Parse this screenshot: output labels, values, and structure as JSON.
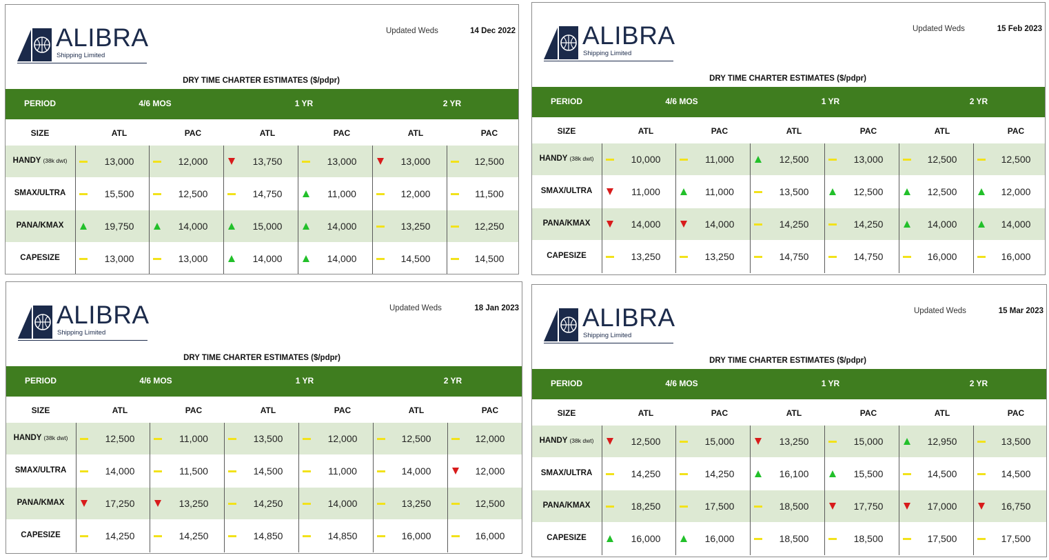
{
  "panels": [
    {
      "brand": "ALIBRA",
      "tagline": "Shipping Limited",
      "updated_label": "Updated Weds",
      "date": "14 Dec 2022",
      "caption": "DRY TIME CHARTER ESTIMATES ($/pdpr)",
      "period_header": [
        "PERIOD",
        "4/6 MOS",
        "1 YR",
        "2 YR"
      ],
      "size_header": [
        "SIZE",
        "ATL",
        "PAC",
        "ATL",
        "PAC",
        "ATL",
        "PAC"
      ],
      "rows": [
        {
          "label": "HANDY",
          "sub": "(38k dwt)",
          "cells": [
            {
              "t": "flat",
              "v": "13,000"
            },
            {
              "t": "flat",
              "v": "12,000"
            },
            {
              "t": "down",
              "v": "13,750"
            },
            {
              "t": "flat",
              "v": "13,000"
            },
            {
              "t": "down",
              "v": "13,000"
            },
            {
              "t": "flat",
              "v": "12,500"
            }
          ]
        },
        {
          "label": "SMAX/ULTRA",
          "sub": "",
          "cells": [
            {
              "t": "flat",
              "v": "15,500"
            },
            {
              "t": "flat",
              "v": "12,500"
            },
            {
              "t": "flat",
              "v": "14,750"
            },
            {
              "t": "up",
              "v": "11,000"
            },
            {
              "t": "flat",
              "v": "12,000"
            },
            {
              "t": "flat",
              "v": "11,500"
            }
          ]
        },
        {
          "label": "PANA/KMAX",
          "sub": "",
          "cells": [
            {
              "t": "up",
              "v": "19,750"
            },
            {
              "t": "up",
              "v": "14,000"
            },
            {
              "t": "up",
              "v": "15,000"
            },
            {
              "t": "up",
              "v": "14,000"
            },
            {
              "t": "flat",
              "v": "13,250"
            },
            {
              "t": "flat",
              "v": "12,250"
            }
          ]
        },
        {
          "label": "CAPESIZE",
          "sub": "",
          "cells": [
            {
              "t": "flat",
              "v": "13,000"
            },
            {
              "t": "flat",
              "v": "13,000"
            },
            {
              "t": "up",
              "v": "14,000"
            },
            {
              "t": "up",
              "v": "14,000"
            },
            {
              "t": "flat",
              "v": "14,500"
            },
            {
              "t": "flat",
              "v": "14,500"
            }
          ]
        }
      ]
    },
    {
      "brand": "ALIBRA",
      "tagline": "Shipping Limited",
      "updated_label": "Updated Weds",
      "date": "15 Feb 2023",
      "caption": "DRY TIME CHARTER ESTIMATES ($/pdpr)",
      "period_header": [
        "PERIOD",
        "4/6 MOS",
        "1 YR",
        "2 YR"
      ],
      "size_header": [
        "SIZE",
        "ATL",
        "PAC",
        "ATL",
        "PAC",
        "ATL",
        "PAC"
      ],
      "rows": [
        {
          "label": "HANDY",
          "sub": "(38k dwt)",
          "cells": [
            {
              "t": "flat",
              "v": "10,000"
            },
            {
              "t": "flat",
              "v": "11,000"
            },
            {
              "t": "up",
              "v": "12,500"
            },
            {
              "t": "flat",
              "v": "13,000"
            },
            {
              "t": "flat",
              "v": "12,500"
            },
            {
              "t": "flat",
              "v": "12,500"
            }
          ]
        },
        {
          "label": "SMAX/ULTRA",
          "sub": "",
          "cells": [
            {
              "t": "down",
              "v": "11,000"
            },
            {
              "t": "up",
              "v": "11,000"
            },
            {
              "t": "flat",
              "v": "13,500"
            },
            {
              "t": "up",
              "v": "12,500"
            },
            {
              "t": "up",
              "v": "12,500"
            },
            {
              "t": "up",
              "v": "12,000"
            }
          ]
        },
        {
          "label": "PANA/KMAX",
          "sub": "",
          "cells": [
            {
              "t": "down",
              "v": "14,000"
            },
            {
              "t": "down",
              "v": "14,000"
            },
            {
              "t": "flat",
              "v": "14,250"
            },
            {
              "t": "flat",
              "v": "14,250"
            },
            {
              "t": "up",
              "v": "14,000"
            },
            {
              "t": "up",
              "v": "14,000"
            }
          ]
        },
        {
          "label": "CAPESIZE",
          "sub": "",
          "cells": [
            {
              "t": "flat",
              "v": "13,250"
            },
            {
              "t": "flat",
              "v": "13,250"
            },
            {
              "t": "flat",
              "v": "14,750"
            },
            {
              "t": "flat",
              "v": "14,750"
            },
            {
              "t": "flat",
              "v": "16,000"
            },
            {
              "t": "flat",
              "v": "16,000"
            }
          ]
        }
      ]
    },
    {
      "brand": "ALIBRA",
      "tagline": "Shipping Limited",
      "updated_label": "Updated Weds",
      "date": "18 Jan 2023",
      "caption": "DRY TIME CHARTER ESTIMATES ($/pdpr)",
      "period_header": [
        "PERIOD",
        "4/6 MOS",
        "1 YR",
        "2 YR"
      ],
      "size_header": [
        "SIZE",
        "ATL",
        "PAC",
        "ATL",
        "PAC",
        "ATL",
        "PAC"
      ],
      "rows": [
        {
          "label": "HANDY",
          "sub": "(38k dwt)",
          "cells": [
            {
              "t": "flat",
              "v": "12,500"
            },
            {
              "t": "flat",
              "v": "11,000"
            },
            {
              "t": "flat",
              "v": "13,500"
            },
            {
              "t": "flat",
              "v": "12,000"
            },
            {
              "t": "flat",
              "v": "12,500"
            },
            {
              "t": "flat",
              "v": "12,000"
            }
          ]
        },
        {
          "label": "SMAX/ULTRA",
          "sub": "",
          "cells": [
            {
              "t": "flat",
              "v": "14,000"
            },
            {
              "t": "flat",
              "v": "11,500"
            },
            {
              "t": "flat",
              "v": "14,500"
            },
            {
              "t": "flat",
              "v": "11,000"
            },
            {
              "t": "flat",
              "v": "14,000"
            },
            {
              "t": "down",
              "v": "12,000"
            }
          ]
        },
        {
          "label": "PANA/KMAX",
          "sub": "",
          "cells": [
            {
              "t": "down",
              "v": "17,250"
            },
            {
              "t": "down",
              "v": "13,250"
            },
            {
              "t": "flat",
              "v": "14,250"
            },
            {
              "t": "flat",
              "v": "14,000"
            },
            {
              "t": "flat",
              "v": "13,250"
            },
            {
              "t": "flat",
              "v": "12,500"
            }
          ]
        },
        {
          "label": "CAPESIZE",
          "sub": "",
          "cells": [
            {
              "t": "flat",
              "v": "14,250"
            },
            {
              "t": "flat",
              "v": "14,250"
            },
            {
              "t": "flat",
              "v": "14,850"
            },
            {
              "t": "flat",
              "v": "14,850"
            },
            {
              "t": "flat",
              "v": "16,000"
            },
            {
              "t": "flat",
              "v": "16,000"
            }
          ]
        }
      ]
    },
    {
      "brand": "ALIBRA",
      "tagline": "Shipping Limited",
      "updated_label": "Updated Weds",
      "date": "15 Mar 2023",
      "caption": "DRY TIME CHARTER ESTIMATES ($/pdpr)",
      "period_header": [
        "PERIOD",
        "4/6 MOS",
        "1 YR",
        "2 YR"
      ],
      "size_header": [
        "SIZE",
        "ATL",
        "PAC",
        "ATL",
        "PAC",
        "ATL",
        "PAC"
      ],
      "rows": [
        {
          "label": "HANDY",
          "sub": "(38k dwt)",
          "cells": [
            {
              "t": "down",
              "v": "12,500"
            },
            {
              "t": "flat",
              "v": "15,000"
            },
            {
              "t": "down",
              "v": "13,250"
            },
            {
              "t": "flat",
              "v": "15,000"
            },
            {
              "t": "up",
              "v": "12,950"
            },
            {
              "t": "flat",
              "v": "13,500"
            }
          ]
        },
        {
          "label": "SMAX/ULTRA",
          "sub": "",
          "cells": [
            {
              "t": "flat",
              "v": "14,250"
            },
            {
              "t": "flat",
              "v": "14,250"
            },
            {
              "t": "up",
              "v": "16,100"
            },
            {
              "t": "up",
              "v": "15,500"
            },
            {
              "t": "flat",
              "v": "14,500"
            },
            {
              "t": "flat",
              "v": "14,500"
            }
          ]
        },
        {
          "label": "PANA/KMAX",
          "sub": "",
          "cells": [
            {
              "t": "flat",
              "v": "18,250"
            },
            {
              "t": "flat",
              "v": "17,500"
            },
            {
              "t": "flat",
              "v": "18,500"
            },
            {
              "t": "down",
              "v": "17,750"
            },
            {
              "t": "down",
              "v": "17,000"
            },
            {
              "t": "down",
              "v": "16,750"
            }
          ]
        },
        {
          "label": "CAPESIZE",
          "sub": "",
          "cells": [
            {
              "t": "up",
              "v": "16,000"
            },
            {
              "t": "up",
              "v": "16,000"
            },
            {
              "t": "flat",
              "v": "18,500"
            },
            {
              "t": "flat",
              "v": "18,500"
            },
            {
              "t": "flat",
              "v": "17,500"
            },
            {
              "t": "flat",
              "v": "17,500"
            }
          ]
        }
      ]
    }
  ],
  "colors": {
    "header_green": "#3f7d1f",
    "row_shade": "#dde9d3",
    "up": "#22c02a",
    "down": "#d81b1b",
    "flat": "#f2e21a",
    "brand": "#1b2a4a"
  },
  "icons": {
    "up": "up-triangle-icon",
    "down": "down-triangle-icon",
    "flat": "flat-dash-icon"
  }
}
